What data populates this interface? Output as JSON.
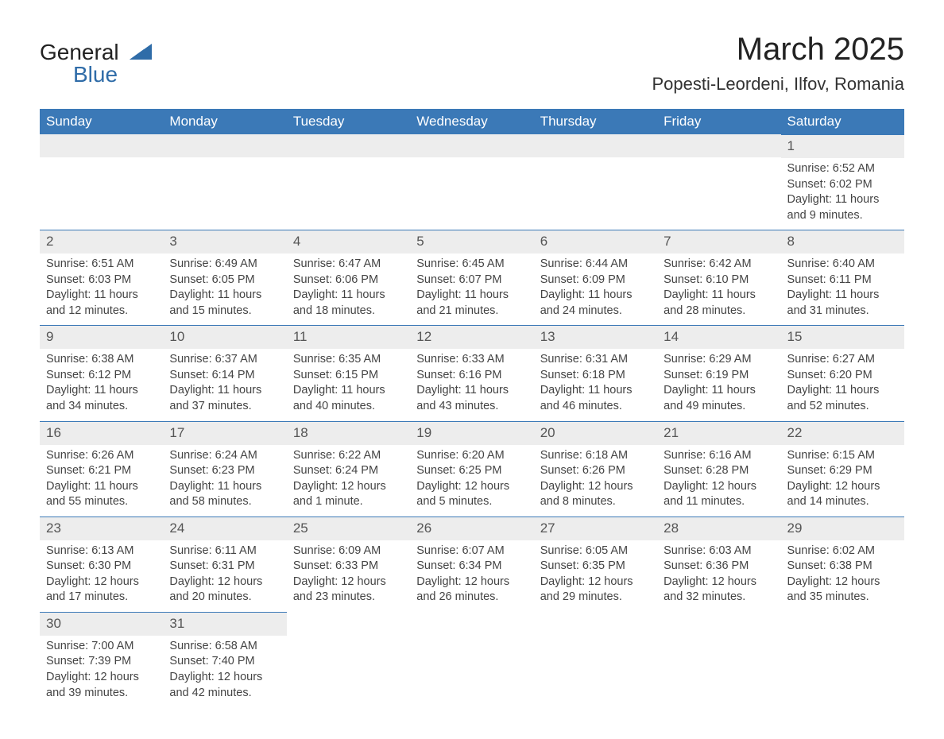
{
  "brand": {
    "word1": "General",
    "word2": "Blue",
    "accent_color": "#2f6ca8"
  },
  "title": "March 2025",
  "subtitle": "Popesti-Leordeni, Ilfov, Romania",
  "colors": {
    "header_bg": "#3b79b7",
    "header_text": "#ffffff",
    "daynum_bg": "#ededed",
    "border": "#3b79b7",
    "text": "#444444"
  },
  "day_headers": [
    "Sunday",
    "Monday",
    "Tuesday",
    "Wednesday",
    "Thursday",
    "Friday",
    "Saturday"
  ],
  "weeks": [
    [
      {
        "n": "",
        "lines": []
      },
      {
        "n": "",
        "lines": []
      },
      {
        "n": "",
        "lines": []
      },
      {
        "n": "",
        "lines": []
      },
      {
        "n": "",
        "lines": []
      },
      {
        "n": "",
        "lines": []
      },
      {
        "n": "1",
        "lines": [
          "Sunrise: 6:52 AM",
          "Sunset: 6:02 PM",
          "Daylight: 11 hours and 9 minutes."
        ]
      }
    ],
    [
      {
        "n": "2",
        "lines": [
          "Sunrise: 6:51 AM",
          "Sunset: 6:03 PM",
          "Daylight: 11 hours and 12 minutes."
        ]
      },
      {
        "n": "3",
        "lines": [
          "Sunrise: 6:49 AM",
          "Sunset: 6:05 PM",
          "Daylight: 11 hours and 15 minutes."
        ]
      },
      {
        "n": "4",
        "lines": [
          "Sunrise: 6:47 AM",
          "Sunset: 6:06 PM",
          "Daylight: 11 hours and 18 minutes."
        ]
      },
      {
        "n": "5",
        "lines": [
          "Sunrise: 6:45 AM",
          "Sunset: 6:07 PM",
          "Daylight: 11 hours and 21 minutes."
        ]
      },
      {
        "n": "6",
        "lines": [
          "Sunrise: 6:44 AM",
          "Sunset: 6:09 PM",
          "Daylight: 11 hours and 24 minutes."
        ]
      },
      {
        "n": "7",
        "lines": [
          "Sunrise: 6:42 AM",
          "Sunset: 6:10 PM",
          "Daylight: 11 hours and 28 minutes."
        ]
      },
      {
        "n": "8",
        "lines": [
          "Sunrise: 6:40 AM",
          "Sunset: 6:11 PM",
          "Daylight: 11 hours and 31 minutes."
        ]
      }
    ],
    [
      {
        "n": "9",
        "lines": [
          "Sunrise: 6:38 AM",
          "Sunset: 6:12 PM",
          "Daylight: 11 hours and 34 minutes."
        ]
      },
      {
        "n": "10",
        "lines": [
          "Sunrise: 6:37 AM",
          "Sunset: 6:14 PM",
          "Daylight: 11 hours and 37 minutes."
        ]
      },
      {
        "n": "11",
        "lines": [
          "Sunrise: 6:35 AM",
          "Sunset: 6:15 PM",
          "Daylight: 11 hours and 40 minutes."
        ]
      },
      {
        "n": "12",
        "lines": [
          "Sunrise: 6:33 AM",
          "Sunset: 6:16 PM",
          "Daylight: 11 hours and 43 minutes."
        ]
      },
      {
        "n": "13",
        "lines": [
          "Sunrise: 6:31 AM",
          "Sunset: 6:18 PM",
          "Daylight: 11 hours and 46 minutes."
        ]
      },
      {
        "n": "14",
        "lines": [
          "Sunrise: 6:29 AM",
          "Sunset: 6:19 PM",
          "Daylight: 11 hours and 49 minutes."
        ]
      },
      {
        "n": "15",
        "lines": [
          "Sunrise: 6:27 AM",
          "Sunset: 6:20 PM",
          "Daylight: 11 hours and 52 minutes."
        ]
      }
    ],
    [
      {
        "n": "16",
        "lines": [
          "Sunrise: 6:26 AM",
          "Sunset: 6:21 PM",
          "Daylight: 11 hours and 55 minutes."
        ]
      },
      {
        "n": "17",
        "lines": [
          "Sunrise: 6:24 AM",
          "Sunset: 6:23 PM",
          "Daylight: 11 hours and 58 minutes."
        ]
      },
      {
        "n": "18",
        "lines": [
          "Sunrise: 6:22 AM",
          "Sunset: 6:24 PM",
          "Daylight: 12 hours and 1 minute."
        ]
      },
      {
        "n": "19",
        "lines": [
          "Sunrise: 6:20 AM",
          "Sunset: 6:25 PM",
          "Daylight: 12 hours and 5 minutes."
        ]
      },
      {
        "n": "20",
        "lines": [
          "Sunrise: 6:18 AM",
          "Sunset: 6:26 PM",
          "Daylight: 12 hours and 8 minutes."
        ]
      },
      {
        "n": "21",
        "lines": [
          "Sunrise: 6:16 AM",
          "Sunset: 6:28 PM",
          "Daylight: 12 hours and 11 minutes."
        ]
      },
      {
        "n": "22",
        "lines": [
          "Sunrise: 6:15 AM",
          "Sunset: 6:29 PM",
          "Daylight: 12 hours and 14 minutes."
        ]
      }
    ],
    [
      {
        "n": "23",
        "lines": [
          "Sunrise: 6:13 AM",
          "Sunset: 6:30 PM",
          "Daylight: 12 hours and 17 minutes."
        ]
      },
      {
        "n": "24",
        "lines": [
          "Sunrise: 6:11 AM",
          "Sunset: 6:31 PM",
          "Daylight: 12 hours and 20 minutes."
        ]
      },
      {
        "n": "25",
        "lines": [
          "Sunrise: 6:09 AM",
          "Sunset: 6:33 PM",
          "Daylight: 12 hours and 23 minutes."
        ]
      },
      {
        "n": "26",
        "lines": [
          "Sunrise: 6:07 AM",
          "Sunset: 6:34 PM",
          "Daylight: 12 hours and 26 minutes."
        ]
      },
      {
        "n": "27",
        "lines": [
          "Sunrise: 6:05 AM",
          "Sunset: 6:35 PM",
          "Daylight: 12 hours and 29 minutes."
        ]
      },
      {
        "n": "28",
        "lines": [
          "Sunrise: 6:03 AM",
          "Sunset: 6:36 PM",
          "Daylight: 12 hours and 32 minutes."
        ]
      },
      {
        "n": "29",
        "lines": [
          "Sunrise: 6:02 AM",
          "Sunset: 6:38 PM",
          "Daylight: 12 hours and 35 minutes."
        ]
      }
    ],
    [
      {
        "n": "30",
        "lines": [
          "Sunrise: 7:00 AM",
          "Sunset: 7:39 PM",
          "Daylight: 12 hours and 39 minutes."
        ]
      },
      {
        "n": "31",
        "lines": [
          "Sunrise: 6:58 AM",
          "Sunset: 7:40 PM",
          "Daylight: 12 hours and 42 minutes."
        ]
      },
      {
        "n": "",
        "lines": []
      },
      {
        "n": "",
        "lines": []
      },
      {
        "n": "",
        "lines": []
      },
      {
        "n": "",
        "lines": []
      },
      {
        "n": "",
        "lines": []
      }
    ]
  ]
}
